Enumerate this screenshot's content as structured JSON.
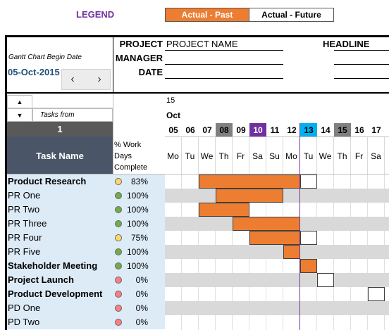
{
  "legend": {
    "title": "LEGEND",
    "past_label": "Actual - Past",
    "future_label": "Actual - Future",
    "colors": {
      "past": "#ed7d31",
      "future": "#ffffff",
      "today": "#7030a0",
      "weekend": "#808080",
      "selected_day": "#00b0f0"
    }
  },
  "header": {
    "begin_label": "Gantt Chart Begin Date",
    "begin_date": "05-Oct-2015",
    "project_label": "PROJECT",
    "manager_label": "MANAGER",
    "date_label": "DATE",
    "project_value": "PROJECT NAME",
    "headline_label": "HEADLINE",
    "nav_prev": "‹",
    "nav_next": "›"
  },
  "scroll": {
    "up_icon": "▲",
    "down_icon": "▼",
    "tasks_from_placeholder": "Tasks from",
    "start_index": "1"
  },
  "columns": {
    "task_name": "Task Name",
    "pct_line1": "% Work",
    "pct_line2": "Days",
    "pct_line3": "Complete"
  },
  "timeline": {
    "year": "15",
    "month": "Oct",
    "days": [
      {
        "day": "05",
        "dow": "Mo",
        "style": "normal"
      },
      {
        "day": "06",
        "dow": "Tu",
        "style": "normal"
      },
      {
        "day": "07",
        "dow": "We",
        "style": "normal"
      },
      {
        "day": "08",
        "dow": "Th",
        "style": "weekend"
      },
      {
        "day": "09",
        "dow": "Fr",
        "style": "normal"
      },
      {
        "day": "10",
        "dow": "Sa",
        "style": "today"
      },
      {
        "day": "11",
        "dow": "Su",
        "style": "normal"
      },
      {
        "day": "12",
        "dow": "Mo",
        "style": "normal"
      },
      {
        "day": "13",
        "dow": "Tu",
        "style": "selected"
      },
      {
        "day": "14",
        "dow": "We",
        "style": "normal"
      },
      {
        "day": "15",
        "dow": "Th",
        "style": "weekend"
      },
      {
        "day": "16",
        "dow": "Fr",
        "style": "normal"
      },
      {
        "day": "17",
        "dow": "Sa",
        "style": "normal"
      }
    ]
  },
  "tasks": [
    {
      "name": "Product Research",
      "bold": true,
      "pct": "83%",
      "status": "yellow",
      "past": [
        2,
        8
      ],
      "future": [
        8,
        9
      ]
    },
    {
      "name": "PR One",
      "bold": false,
      "pct": "100%",
      "status": "green",
      "past": [
        3,
        7
      ],
      "future": null
    },
    {
      "name": "PR Two",
      "bold": false,
      "pct": "100%",
      "status": "green",
      "past": [
        2,
        5
      ],
      "future": null
    },
    {
      "name": "PR Three",
      "bold": false,
      "pct": "100%",
      "status": "green",
      "past": [
        4,
        8
      ],
      "future": null
    },
    {
      "name": "PR Four",
      "bold": false,
      "pct": "75%",
      "status": "yellow",
      "past": [
        5,
        8
      ],
      "future": [
        8,
        9
      ]
    },
    {
      "name": "PR Five",
      "bold": false,
      "pct": "100%",
      "status": "green",
      "past": [
        7,
        8
      ],
      "future": null
    },
    {
      "name": "Stakeholder Meeting",
      "bold": true,
      "pct": "100%",
      "status": "green",
      "past": [
        8,
        9
      ],
      "future": null
    },
    {
      "name": "Project Launch",
      "bold": true,
      "pct": "0%",
      "status": "red",
      "past": null,
      "future": [
        9,
        10
      ]
    },
    {
      "name": "Product Development",
      "bold": true,
      "pct": "0%",
      "status": "red",
      "past": null,
      "future": [
        12,
        13
      ]
    },
    {
      "name": "PD One",
      "bold": false,
      "pct": "0%",
      "status": "red",
      "past": null,
      "future": null
    },
    {
      "name": "PD Two",
      "bold": false,
      "pct": "0%",
      "status": "red",
      "past": null,
      "future": null
    }
  ]
}
